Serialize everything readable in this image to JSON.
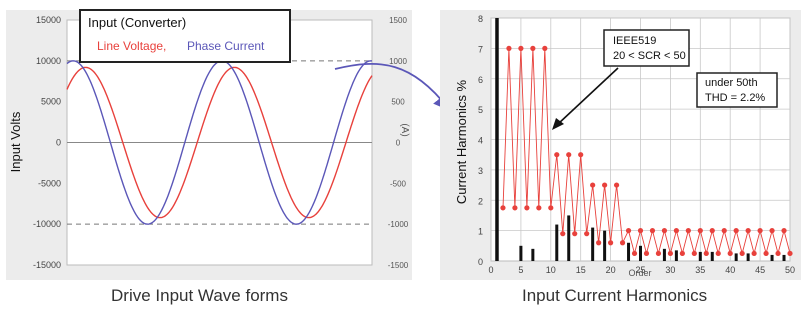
{
  "chart_data": [
    {
      "type": "line",
      "caption": "Drive Input Wave forms",
      "ylabel": "Input Volts",
      "y2label": "(A)",
      "ylim": [
        -15000,
        15000
      ],
      "y2lim": [
        -1500,
        1500
      ],
      "yticks": [
        15000,
        10000,
        5000,
        0,
        -5000,
        -10000,
        -15000
      ],
      "y2ticks": [
        1500,
        1000,
        500,
        0,
        -500,
        -1000,
        -1500
      ],
      "grid": "dashed at ±10000",
      "legend": {
        "title": "Input (Converter)",
        "placement": "top-left"
      },
      "series": [
        {
          "name": "Line Voltage,",
          "color": "#e8413c",
          "amplitude": 9200,
          "phase_deg": -15
        },
        {
          "name": "Phase Current",
          "color": "#5b57b8",
          "amplitude": 1000,
          "phase_deg": 15
        }
      ]
    },
    {
      "type": "bar",
      "caption": "Input Current Harmonics",
      "ylabel": "Current Harmonics %",
      "xlabel": "Order",
      "ylim": [
        0,
        8
      ],
      "xlim": [
        0,
        50
      ],
      "yticks": [
        0,
        1,
        2,
        3,
        4,
        5,
        6,
        7,
        8
      ],
      "xticks": [
        0,
        5,
        10,
        15,
        20,
        25,
        30,
        35,
        40,
        45,
        50
      ],
      "bars": {
        "color": "#111111",
        "orders": [
          1,
          5,
          7,
          11,
          13,
          17,
          19,
          23,
          25,
          29,
          31,
          35,
          37,
          41,
          43,
          47,
          49
        ],
        "values": [
          8,
          0.5,
          0.4,
          1.2,
          1.5,
          1.1,
          1.0,
          0.6,
          0.5,
          0.4,
          0.35,
          0.3,
          0.3,
          0.25,
          0.25,
          0.2,
          0.2
        ]
      },
      "limit": {
        "name": "IEEE519",
        "color": "#e8413c",
        "upper": [
          [
            3,
            7
          ],
          [
            5,
            7
          ],
          [
            7,
            7
          ],
          [
            9,
            7
          ],
          [
            11,
            3.5
          ],
          [
            13,
            3.5
          ],
          [
            15,
            3.5
          ],
          [
            17,
            2.5
          ],
          [
            19,
            2.5
          ],
          [
            21,
            2.5
          ],
          [
            23,
            1
          ],
          [
            25,
            1
          ],
          [
            27,
            1
          ],
          [
            29,
            1
          ],
          [
            31,
            1
          ],
          [
            33,
            1
          ],
          [
            35,
            1
          ],
          [
            37,
            1
          ],
          [
            39,
            1
          ],
          [
            41,
            1
          ],
          [
            43,
            1
          ],
          [
            45,
            1
          ],
          [
            47,
            1
          ],
          [
            49,
            1
          ]
        ],
        "lower": [
          [
            2,
            1.75
          ],
          [
            4,
            1.75
          ],
          [
            6,
            1.75
          ],
          [
            8,
            1.75
          ],
          [
            10,
            1.75
          ],
          [
            12,
            0.9
          ],
          [
            14,
            0.9
          ],
          [
            16,
            0.9
          ],
          [
            18,
            0.6
          ],
          [
            20,
            0.6
          ],
          [
            22,
            0.6
          ],
          [
            24,
            0.25
          ],
          [
            26,
            0.25
          ],
          [
            28,
            0.25
          ],
          [
            30,
            0.25
          ],
          [
            32,
            0.25
          ],
          [
            34,
            0.25
          ],
          [
            36,
            0.25
          ],
          [
            38,
            0.25
          ],
          [
            40,
            0.25
          ],
          [
            42,
            0.25
          ],
          [
            44,
            0.25
          ],
          [
            46,
            0.25
          ],
          [
            48,
            0.25
          ],
          [
            50,
            0.25
          ]
        ]
      },
      "annotations": [
        {
          "id": "ieee",
          "lines": [
            "IEEE519",
            "20 < SCR < 50"
          ]
        },
        {
          "id": "thd",
          "lines": [
            "under 50th",
            "THD = 2.2%"
          ]
        }
      ]
    }
  ]
}
